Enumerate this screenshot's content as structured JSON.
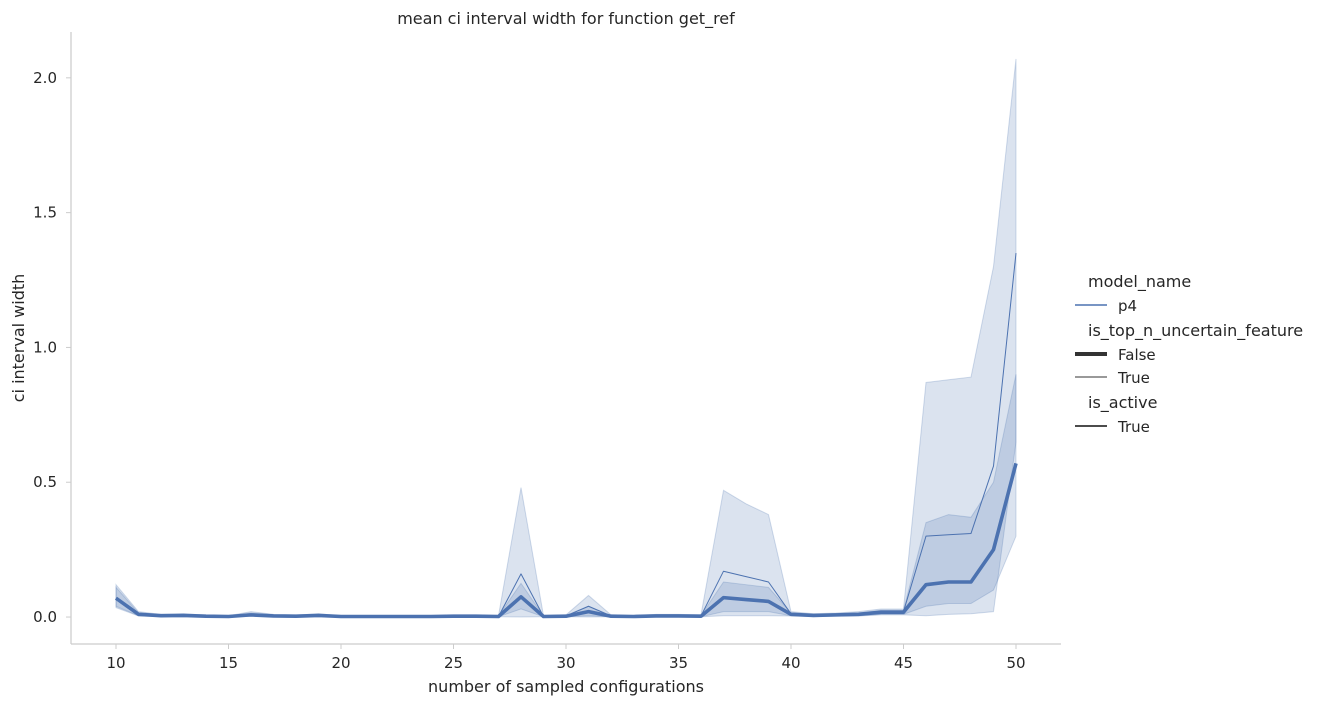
{
  "chart_data": {
    "type": "line",
    "title": "mean ci interval width for function get_ref",
    "xlabel": "number of sampled configurations",
    "ylabel": "ci interval width",
    "xlim": [
      8,
      52
    ],
    "ylim": [
      -0.1,
      2.17
    ],
    "xticks": [
      "10",
      "15",
      "20",
      "25",
      "30",
      "35",
      "40",
      "45",
      "50"
    ],
    "yticks": [
      "0.0",
      "0.5",
      "1.0",
      "1.5",
      "2.0"
    ],
    "grid": false,
    "legend_position": "right",
    "line_color": "#4c72b0",
    "x": [
      10,
      11,
      12,
      13,
      14,
      15,
      16,
      17,
      18,
      19,
      20,
      21,
      22,
      23,
      24,
      25,
      26,
      27,
      28,
      29,
      30,
      31,
      32,
      33,
      34,
      35,
      36,
      37,
      38,
      39,
      40,
      41,
      42,
      43,
      44,
      45,
      46,
      47,
      48,
      49,
      50
    ],
    "series": [
      {
        "name": "False",
        "line_width": "thick",
        "values": [
          0.07,
          0.01,
          0.005,
          0.006,
          0.003,
          0.002,
          0.008,
          0.004,
          0.003,
          0.006,
          0.002,
          0.002,
          0.002,
          0.002,
          0.002,
          0.003,
          0.003,
          0.002,
          0.075,
          0.002,
          0.003,
          0.02,
          0.003,
          0.002,
          0.004,
          0.004,
          0.003,
          0.072,
          0.065,
          0.058,
          0.01,
          0.006,
          0.008,
          0.01,
          0.018,
          0.018,
          0.12,
          0.13,
          0.13,
          0.25,
          0.57
        ],
        "ci_low": [
          0.04,
          0.005,
          0.003,
          0.003,
          0.001,
          0.001,
          0.004,
          0.002,
          0.001,
          0.003,
          0.001,
          0.001,
          0.001,
          0.001,
          0.001,
          0.001,
          0.001,
          0.001,
          0.03,
          0.001,
          0.001,
          0.005,
          0.001,
          0.001,
          0.002,
          0.002,
          0.001,
          0.02,
          0.02,
          0.02,
          0.005,
          0.003,
          0.004,
          0.005,
          0.01,
          0.01,
          0.04,
          0.05,
          0.05,
          0.1,
          0.3
        ],
        "ci_high": [
          0.11,
          0.015,
          0.008,
          0.01,
          0.006,
          0.004,
          0.015,
          0.008,
          0.006,
          0.01,
          0.004,
          0.004,
          0.004,
          0.004,
          0.004,
          0.005,
          0.005,
          0.004,
          0.125,
          0.004,
          0.006,
          0.04,
          0.006,
          0.004,
          0.007,
          0.007,
          0.006,
          0.13,
          0.12,
          0.11,
          0.015,
          0.01,
          0.012,
          0.015,
          0.025,
          0.025,
          0.35,
          0.38,
          0.37,
          0.5,
          0.9
        ]
      },
      {
        "name": "True",
        "line_width": "thin",
        "values": [
          0.07,
          0.01,
          0.005,
          0.006,
          0.003,
          0.002,
          0.01,
          0.005,
          0.003,
          0.006,
          0.002,
          0.002,
          0.002,
          0.002,
          0.002,
          0.003,
          0.003,
          0.002,
          0.16,
          0.002,
          0.004,
          0.04,
          0.004,
          0.002,
          0.005,
          0.005,
          0.004,
          0.17,
          0.15,
          0.13,
          0.012,
          0.007,
          0.009,
          0.012,
          0.02,
          0.02,
          0.3,
          0.305,
          0.31,
          0.56,
          1.35
        ],
        "ci_low": [
          0.035,
          0.004,
          0.002,
          0.002,
          0.001,
          0.001,
          0.003,
          0.001,
          0.001,
          0.002,
          0.001,
          0.001,
          0.001,
          0.001,
          0.001,
          0.001,
          0.001,
          0.001,
          0.0,
          0.001,
          0.001,
          0.0,
          0.001,
          0.001,
          0.001,
          0.001,
          0.001,
          0.005,
          0.005,
          0.005,
          0.004,
          0.002,
          0.003,
          0.004,
          0.008,
          0.008,
          0.005,
          0.01,
          0.012,
          0.02,
          0.65
        ],
        "ci_high": [
          0.12,
          0.02,
          0.01,
          0.012,
          0.007,
          0.005,
          0.02,
          0.01,
          0.007,
          0.012,
          0.005,
          0.005,
          0.005,
          0.005,
          0.005,
          0.006,
          0.006,
          0.005,
          0.48,
          0.005,
          0.008,
          0.08,
          0.008,
          0.005,
          0.01,
          0.01,
          0.008,
          0.47,
          0.42,
          0.38,
          0.02,
          0.012,
          0.015,
          0.02,
          0.03,
          0.03,
          0.87,
          0.88,
          0.89,
          1.3,
          2.07
        ]
      }
    ],
    "legend": {
      "groups": [
        {
          "title": "model_name",
          "entries": [
            {
              "label": "p4",
              "style": "colored"
            }
          ]
        },
        {
          "title": "is_top_n_uncertain_feature",
          "entries": [
            {
              "label": "False",
              "style": "thick"
            },
            {
              "label": "True",
              "style": "thin"
            }
          ]
        },
        {
          "title": "is_active",
          "entries": [
            {
              "label": "True",
              "style": "plain"
            }
          ]
        }
      ]
    }
  }
}
